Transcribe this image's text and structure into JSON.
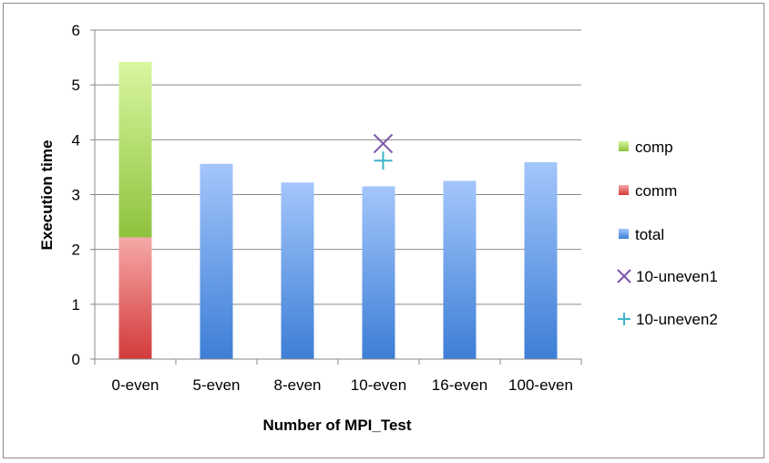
{
  "chart_data": {
    "type": "bar",
    "title": "",
    "xlabel": "Number of MPI_Test",
    "ylabel": "Execution time",
    "ylim": [
      0,
      6
    ],
    "yticks": [
      0,
      1,
      2,
      3,
      4,
      5,
      6
    ],
    "grid": true,
    "legend_position": "right",
    "categories": [
      "0-even",
      "5-even",
      "8-even",
      "10-even",
      "16-even",
      "100-even"
    ],
    "series": [
      {
        "name": "comp",
        "kind": "stacked-bar",
        "color": "#9ccc4a",
        "values": [
          3.2,
          null,
          null,
          null,
          null,
          null
        ]
      },
      {
        "name": "comm",
        "kind": "stacked-bar",
        "color": "#e05555",
        "values": [
          2.22,
          null,
          null,
          null,
          null,
          null
        ]
      },
      {
        "name": "total",
        "kind": "bar",
        "color": "#5b93dd",
        "values": [
          null,
          3.56,
          3.22,
          3.15,
          3.25,
          3.59
        ]
      },
      {
        "name": "10-uneven1",
        "kind": "marker",
        "marker": "x",
        "color": "#7e55a8",
        "points": [
          {
            "category": "10-even",
            "value": 3.93
          }
        ]
      },
      {
        "name": "10-uneven2",
        "kind": "marker",
        "marker": "plus",
        "color": "#3fb3c9",
        "points": [
          {
            "category": "10-even",
            "value": 3.62
          }
        ]
      }
    ]
  }
}
